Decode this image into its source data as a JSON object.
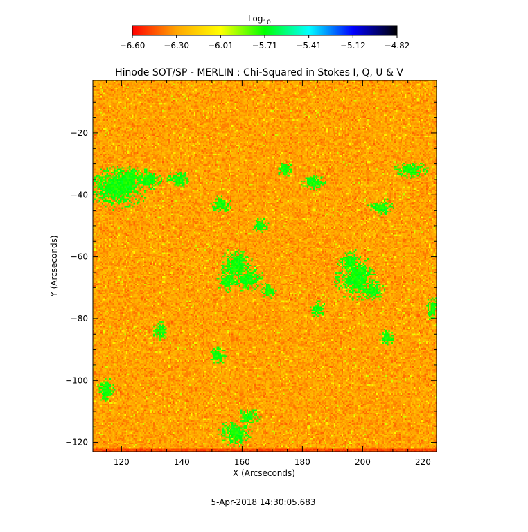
{
  "colorbar": {
    "label": "Log",
    "label_subscript": "10",
    "ticks": [
      "-6.60",
      "-6.30",
      "-6.01",
      "-5.71",
      "-5.41",
      "-5.12",
      "-4.82"
    ]
  },
  "footer": {
    "timestamp": "5-Apr-2018 14:30:05.683"
  },
  "chart_data": {
    "type": "heatmap",
    "title": "Hinode SOT/SP - MERLIN : Chi-Squared in Stokes I, Q, U & V",
    "xlabel": "X (Arcseconds)",
    "ylabel": "Y (Arcseconds)",
    "xlim": [
      110.5,
      224.5
    ],
    "ylim": [
      -123,
      -3
    ],
    "x_ticks": [
      120,
      140,
      160,
      180,
      200,
      220
    ],
    "y_ticks": [
      -20,
      -40,
      -60,
      -80,
      -100,
      -120
    ],
    "x_tick_labels": [
      "120",
      "140",
      "160",
      "180",
      "200",
      "220"
    ],
    "y_tick_labels": [
      "−20",
      "−40",
      "−60",
      "−80",
      "−100",
      "−120"
    ],
    "colorbar_range": [
      -6.6,
      -4.82
    ],
    "colormap": [
      "#ff0000",
      "#ffa500",
      "#ffff00",
      "#00ff00",
      "#00ffff",
      "#0000ff",
      "#000000"
    ],
    "value_background": -6.3,
    "value_background_spread": 0.07,
    "low_chi_patches": [
      {
        "x": 118.5,
        "y": -37.5,
        "rx": 7.5,
        "ry": 5
      },
      {
        "x": 123,
        "y": -35,
        "rx": 4,
        "ry": 3
      },
      {
        "x": 129,
        "y": -35,
        "rx": 3,
        "ry": 2.5
      },
      {
        "x": 158,
        "y": -63,
        "rx": 4,
        "ry": 4
      },
      {
        "x": 162,
        "y": -67,
        "rx": 4,
        "ry": 3
      },
      {
        "x": 155,
        "y": -68,
        "rx": 2.5,
        "ry": 2.5
      },
      {
        "x": 198,
        "y": -67,
        "rx": 5,
        "ry": 5
      },
      {
        "x": 196,
        "y": -62,
        "rx": 3,
        "ry": 3
      },
      {
        "x": 203,
        "y": -71,
        "rx": 3,
        "ry": 2.5
      },
      {
        "x": 174,
        "y": -32,
        "rx": 2,
        "ry": 2
      },
      {
        "x": 153,
        "y": -43,
        "rx": 2.5,
        "ry": 2
      },
      {
        "x": 166,
        "y": -50,
        "rx": 2,
        "ry": 2
      },
      {
        "x": 169,
        "y": -71,
        "rx": 2,
        "ry": 2
      },
      {
        "x": 185,
        "y": -77,
        "rx": 2,
        "ry": 2
      },
      {
        "x": 158,
        "y": -117,
        "rx": 4,
        "ry": 3
      },
      {
        "x": 162,
        "y": -112,
        "rx": 3,
        "ry": 2
      },
      {
        "x": 115,
        "y": -103,
        "rx": 2,
        "ry": 3
      },
      {
        "x": 223,
        "y": -77,
        "rx": 1.5,
        "ry": 3
      },
      {
        "x": 208,
        "y": -86,
        "rx": 2,
        "ry": 2
      },
      {
        "x": 206,
        "y": -44,
        "rx": 3,
        "ry": 2
      },
      {
        "x": 139,
        "y": -35,
        "rx": 3,
        "ry": 2
      },
      {
        "x": 184,
        "y": -36,
        "rx": 3,
        "ry": 2
      },
      {
        "x": 216,
        "y": -32,
        "rx": 4,
        "ry": 2
      },
      {
        "x": 133,
        "y": -84,
        "rx": 2,
        "ry": 2
      },
      {
        "x": 152,
        "y": -92,
        "rx": 2,
        "ry": 2
      }
    ],
    "patch_value": -5.72,
    "grid": false,
    "legend": "colorbar top-center"
  }
}
